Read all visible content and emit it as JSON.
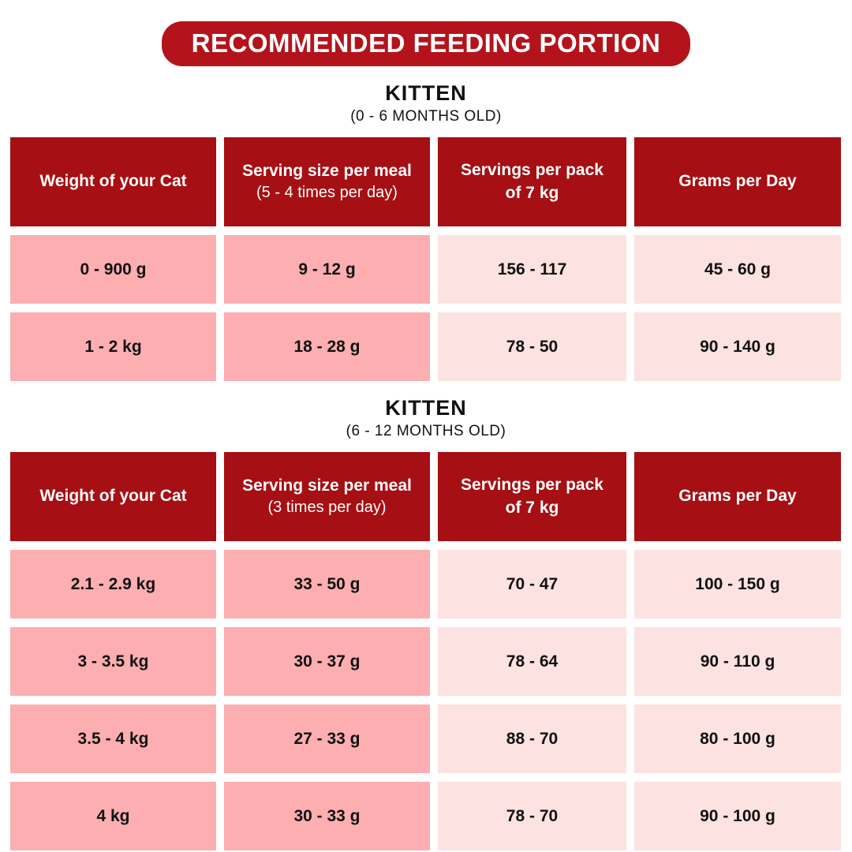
{
  "title": "RECOMMENDED FEEDING PORTION",
  "colors": {
    "title_pill_red": "#B4131B",
    "header_red": "#A60F13",
    "cell_pink_dark": "#FCAEB1",
    "cell_pink_light": "#FCE2E1",
    "header_text": "#FFFFFF",
    "body_text": "#111111",
    "background": "#FFFFFF"
  },
  "sections": [
    {
      "heading": "KITTEN",
      "subheading": "(0 - 6 MONTHS OLD)",
      "columns": [
        {
          "line1": "Weight of your Cat",
          "line2": "",
          "sub": ""
        },
        {
          "line1": "Serving size per meal",
          "line2": "",
          "sub": "(5 - 4 times per day)"
        },
        {
          "line1": "Servings per pack",
          "line2": "of 7 kg",
          "sub": ""
        },
        {
          "line1": "Grams per Day",
          "line2": "",
          "sub": ""
        }
      ],
      "rows": [
        [
          "0 - 900 g",
          "9 - 12 g",
          "156 - 117",
          "45 - 60 g"
        ],
        [
          "1 - 2 kg",
          "18 - 28 g",
          "78 - 50",
          "90 - 140 g"
        ]
      ]
    },
    {
      "heading": "KITTEN",
      "subheading": "(6 - 12 MONTHS OLD)",
      "columns": [
        {
          "line1": "Weight of your Cat",
          "line2": "",
          "sub": ""
        },
        {
          "line1": "Serving size per meal",
          "line2": "",
          "sub": "(3 times per day)"
        },
        {
          "line1": "Servings per pack",
          "line2": "of 7 kg",
          "sub": ""
        },
        {
          "line1": "Grams per Day",
          "line2": "",
          "sub": ""
        }
      ],
      "rows": [
        [
          "2.1 - 2.9 kg",
          "33 - 50 g",
          "70 - 47",
          "100 - 150 g"
        ],
        [
          "3 - 3.5 kg",
          "30 - 37 g",
          "78 - 64",
          "90 - 110 g"
        ],
        [
          "3.5 - 4 kg",
          "27 - 33 g",
          "88 - 70",
          "80 - 100 g"
        ],
        [
          "4 kg",
          "30 - 33 g",
          "78 - 70",
          "90 - 100 g"
        ]
      ]
    }
  ]
}
